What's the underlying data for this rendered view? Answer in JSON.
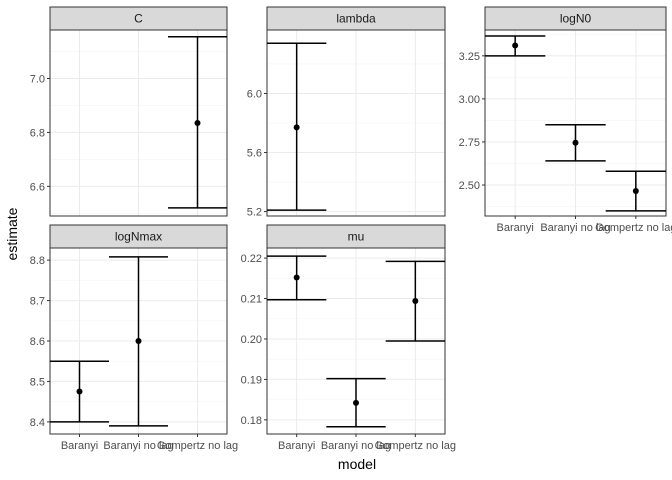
{
  "chart_data": {
    "type": "errorbar-facets",
    "xlabel": "model",
    "ylabel": "estimate",
    "models": [
      "Baranyi",
      "Baranyi no lag",
      "Gompertz no lag"
    ],
    "facets": [
      {
        "title": "C",
        "ylim": [
          6.49,
          7.18
        ],
        "yticks": [
          6.6,
          6.8,
          7.0
        ],
        "ytick_labels": [
          "6.6",
          "6.8",
          "7.0"
        ],
        "show_x_labels": false,
        "points": [
          {
            "model": "Gompertz no lag",
            "estimate": 6.835,
            "lower": 6.52,
            "upper": 7.155
          }
        ]
      },
      {
        "title": "lambda",
        "ylim": [
          5.17,
          6.43
        ],
        "yticks": [
          5.2,
          5.6,
          6.0
        ],
        "ytick_labels": [
          "5.2",
          "5.6",
          "6.0"
        ],
        "show_x_labels": false,
        "points": [
          {
            "model": "Baranyi",
            "estimate": 5.77,
            "lower": 5.21,
            "upper": 6.34
          }
        ]
      },
      {
        "title": "logN0",
        "ylim": [
          2.32,
          3.4
        ],
        "yticks": [
          2.5,
          2.75,
          3.0,
          3.25
        ],
        "ytick_labels": [
          "2.50",
          "2.75",
          "3.00",
          "3.25"
        ],
        "show_x_labels": true,
        "points": [
          {
            "model": "Baranyi",
            "estimate": 3.31,
            "lower": 3.25,
            "upper": 3.365
          },
          {
            "model": "Baranyi no lag",
            "estimate": 2.745,
            "lower": 2.64,
            "upper": 2.85
          },
          {
            "model": "Gompertz no lag",
            "estimate": 2.465,
            "lower": 2.35,
            "upper": 2.58
          }
        ]
      },
      {
        "title": "logNmax",
        "ylim": [
          8.37,
          8.83
        ],
        "yticks": [
          8.4,
          8.5,
          8.6,
          8.7,
          8.8
        ],
        "ytick_labels": [
          "8.4",
          "8.5",
          "8.6",
          "8.7",
          "8.8"
        ],
        "show_x_labels": true,
        "points": [
          {
            "model": "Baranyi",
            "estimate": 8.475,
            "lower": 8.4,
            "upper": 8.55
          },
          {
            "model": "Baranyi no lag",
            "estimate": 8.6,
            "lower": 8.39,
            "upper": 8.808
          }
        ]
      },
      {
        "title": "mu",
        "ylim": [
          0.1765,
          0.2225
        ],
        "yticks": [
          0.18,
          0.19,
          0.2,
          0.21,
          0.22
        ],
        "ytick_labels": [
          "0.18",
          "0.19",
          "0.20",
          "0.21",
          "0.22"
        ],
        "show_x_labels": true,
        "points": [
          {
            "model": "Baranyi",
            "estimate": 0.2152,
            "lower": 0.2097,
            "upper": 0.2205
          },
          {
            "model": "Baranyi no lag",
            "estimate": 0.1842,
            "lower": 0.1783,
            "upper": 0.1902
          },
          {
            "model": "Gompertz no lag",
            "estimate": 0.2094,
            "lower": 0.1995,
            "upper": 0.2192
          }
        ]
      }
    ]
  }
}
